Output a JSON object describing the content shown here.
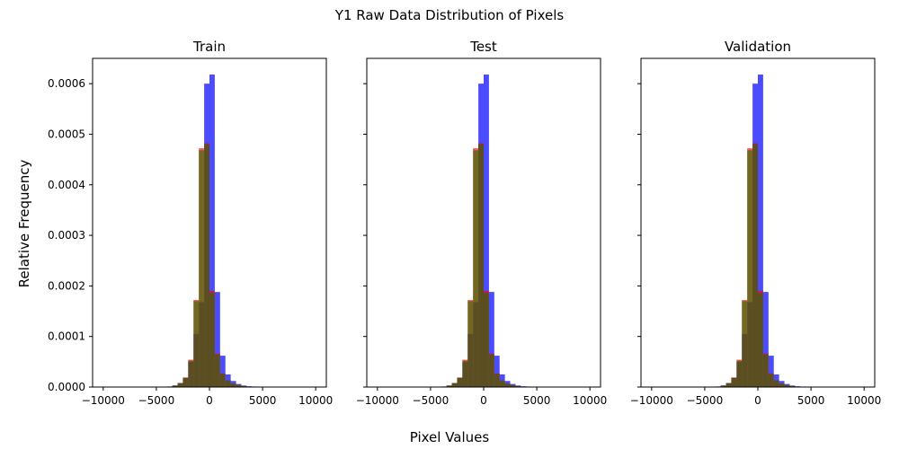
{
  "figure": {
    "suptitle": "Y1 Raw Data Distribution of Pixels",
    "xlabel": "Pixel Values",
    "ylabel": "Relative Frequency"
  },
  "colors": {
    "blue": "#0000ff",
    "red": "#ff0000",
    "green": "#008000",
    "overlap": "#355e15"
  },
  "chart_data": [
    {
      "type": "bar",
      "title": "Train",
      "xlim": [
        -11000,
        11000
      ],
      "ylim": [
        0,
        0.00065
      ],
      "xticks": [
        -10000,
        -5000,
        0,
        5000,
        10000
      ],
      "xtick_labels": [
        "−10000",
        "−5000",
        "0",
        "5000",
        "10000"
      ],
      "yticks": [
        0,
        0.0001,
        0.0002,
        0.0003,
        0.0004,
        0.0005,
        0.0006
      ],
      "ytick_labels": [
        "0.0000",
        "0.0001",
        "0.0002",
        "0.0003",
        "0.0004",
        "0.0005",
        "0.0006"
      ],
      "bin_width": 500,
      "bins": [
        -4000,
        -3500,
        -3000,
        -2500,
        -2000,
        -1500,
        -1000,
        -500,
        0,
        500,
        1000,
        1500,
        2000,
        2500,
        3000,
        3500,
        4000,
        4500,
        5000,
        5500
      ],
      "series": [
        {
          "color_key": "blue",
          "values": [
            1e-06,
            3e-06,
            8e-06,
            1.8e-05,
            5e-05,
            0.000105,
            0.000168,
            0.0006,
            0.000618,
            0.000188,
            6.2e-05,
            2.5e-05,
            1.2e-05,
            6e-06,
            3e-06,
            1.5e-06,
            1e-06,
            5e-07,
            3e-07,
            1e-07
          ]
        },
        {
          "color_key": "red",
          "values": [
            1e-06,
            3e-06,
            8e-06,
            1.9e-05,
            5.4e-05,
            0.000172,
            0.000472,
            0.000482,
            0.00019,
            6.6e-05,
            2.7e-05,
            1.3e-05,
            7e-06,
            4e-06,
            2e-06,
            1e-06,
            7e-07,
            4e-07,
            2e-07,
            1e-07
          ]
        },
        {
          "color_key": "green",
          "values": [
            1e-06,
            3e-06,
            8e-06,
            1.8e-05,
            5.2e-05,
            0.00017,
            0.000468,
            0.00048,
            0.000186,
            6.4e-05,
            2.6e-05,
            1.3e-05,
            7e-06,
            4e-06,
            2e-06,
            1e-06,
            7e-07,
            4e-07,
            2e-07,
            1e-07
          ]
        }
      ]
    },
    {
      "type": "bar",
      "title": "Test",
      "xlim": [
        -11000,
        11000
      ],
      "ylim": [
        0,
        0.00065
      ],
      "xticks": [
        -10000,
        -5000,
        0,
        5000,
        10000
      ],
      "xtick_labels": [
        "−10000",
        "−5000",
        "0",
        "5000",
        "10000"
      ],
      "yticks": [
        0,
        0.0001,
        0.0002,
        0.0003,
        0.0004,
        0.0005,
        0.0006
      ],
      "ytick_labels": [
        "",
        "",
        "",
        "",
        "",
        "",
        ""
      ],
      "bin_width": 500,
      "bins": [
        -4000,
        -3500,
        -3000,
        -2500,
        -2000,
        -1500,
        -1000,
        -500,
        0,
        500,
        1000,
        1500,
        2000,
        2500,
        3000,
        3500,
        4000,
        4500,
        5000,
        5500
      ],
      "series": [
        {
          "color_key": "blue",
          "values": [
            1e-06,
            3e-06,
            8e-06,
            1.8e-05,
            5e-05,
            0.000105,
            0.000168,
            0.0006,
            0.000618,
            0.000188,
            6.2e-05,
            2.5e-05,
            1.2e-05,
            6e-06,
            3e-06,
            1.5e-06,
            1e-06,
            5e-07,
            3e-07,
            1e-07
          ]
        },
        {
          "color_key": "red",
          "values": [
            1e-06,
            3e-06,
            8e-06,
            1.9e-05,
            5.4e-05,
            0.000172,
            0.000472,
            0.000482,
            0.00019,
            6.6e-05,
            2.7e-05,
            1.3e-05,
            7e-06,
            4e-06,
            2e-06,
            1e-06,
            7e-07,
            4e-07,
            2e-07,
            1e-07
          ]
        },
        {
          "color_key": "green",
          "values": [
            1e-06,
            3e-06,
            8e-06,
            1.8e-05,
            5.2e-05,
            0.00017,
            0.000468,
            0.00048,
            0.000186,
            6.4e-05,
            2.6e-05,
            1.3e-05,
            7e-06,
            4e-06,
            2e-06,
            1e-06,
            7e-07,
            4e-07,
            2e-07,
            1e-07
          ]
        }
      ]
    },
    {
      "type": "bar",
      "title": "Validation",
      "xlim": [
        -11000,
        11000
      ],
      "ylim": [
        0,
        0.00065
      ],
      "xticks": [
        -10000,
        -5000,
        0,
        5000,
        10000
      ],
      "xtick_labels": [
        "−10000",
        "−5000",
        "0",
        "5000",
        "10000"
      ],
      "yticks": [
        0,
        0.0001,
        0.0002,
        0.0003,
        0.0004,
        0.0005,
        0.0006
      ],
      "ytick_labels": [
        "",
        "",
        "",
        "",
        "",
        "",
        ""
      ],
      "bin_width": 500,
      "bins": [
        -4000,
        -3500,
        -3000,
        -2500,
        -2000,
        -1500,
        -1000,
        -500,
        0,
        500,
        1000,
        1500,
        2000,
        2500,
        3000,
        3500,
        4000,
        4500,
        5000,
        5500
      ],
      "series": [
        {
          "color_key": "blue",
          "values": [
            1e-06,
            3e-06,
            8e-06,
            1.8e-05,
            5e-05,
            0.000105,
            0.000168,
            0.0006,
            0.000618,
            0.000188,
            6.2e-05,
            2.5e-05,
            1.2e-05,
            6e-06,
            3e-06,
            1.5e-06,
            1e-06,
            5e-07,
            3e-07,
            1e-07
          ]
        },
        {
          "color_key": "red",
          "values": [
            1e-06,
            3e-06,
            8e-06,
            1.9e-05,
            5.4e-05,
            0.000172,
            0.000472,
            0.000482,
            0.00019,
            6.6e-05,
            2.7e-05,
            1.3e-05,
            7e-06,
            4e-06,
            2e-06,
            1e-06,
            7e-07,
            4e-07,
            2e-07,
            1e-07
          ]
        },
        {
          "color_key": "green",
          "values": [
            1e-06,
            3e-06,
            8e-06,
            1.8e-05,
            5.2e-05,
            0.00017,
            0.000468,
            0.00048,
            0.000186,
            6.4e-05,
            2.6e-05,
            1.3e-05,
            7e-06,
            4e-06,
            2e-06,
            1e-06,
            7e-07,
            4e-07,
            2e-07,
            1e-07
          ]
        }
      ]
    }
  ]
}
